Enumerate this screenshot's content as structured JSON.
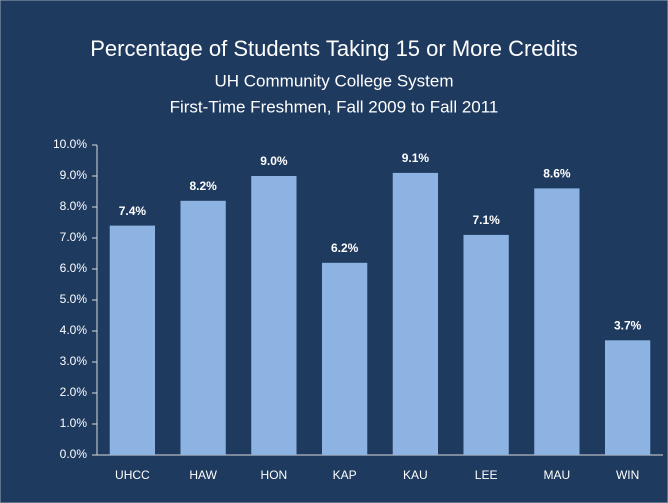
{
  "chart_data": {
    "type": "bar",
    "title": "Percentage of Students Taking 15 or More Credits",
    "subtitle": [
      "UH Community College System",
      "First-Time Freshmen, Fall 2009 to Fall 2011"
    ],
    "categories": [
      "UHCC",
      "HAW",
      "HON",
      "KAP",
      "KAU",
      "LEE",
      "MAU",
      "WIN"
    ],
    "values": [
      7.4,
      8.2,
      9.0,
      6.2,
      9.1,
      7.1,
      8.6,
      3.7
    ],
    "value_labels": [
      "7.4%",
      "8.2%",
      "9.0%",
      "6.2%",
      "9.1%",
      "7.1%",
      "8.6%",
      "3.7%"
    ],
    "color": "#8db3e2",
    "ylim": [
      0,
      10
    ],
    "yticks": [
      {
        "value": 0,
        "label": "0.0%"
      },
      {
        "value": 1,
        "label": "1.0%"
      },
      {
        "value": 2,
        "label": "2.0%"
      },
      {
        "value": 3,
        "label": "3.0%"
      },
      {
        "value": 4,
        "label": "4.0%"
      },
      {
        "value": 5,
        "label": "5.0%"
      },
      {
        "value": 6,
        "label": "6.0%"
      },
      {
        "value": 7,
        "label": "7.0%"
      },
      {
        "value": 8,
        "label": "8.0%"
      },
      {
        "value": 9,
        "label": "9.0%"
      },
      {
        "value": 10,
        "label": "10.0%"
      }
    ],
    "grid": false
  }
}
